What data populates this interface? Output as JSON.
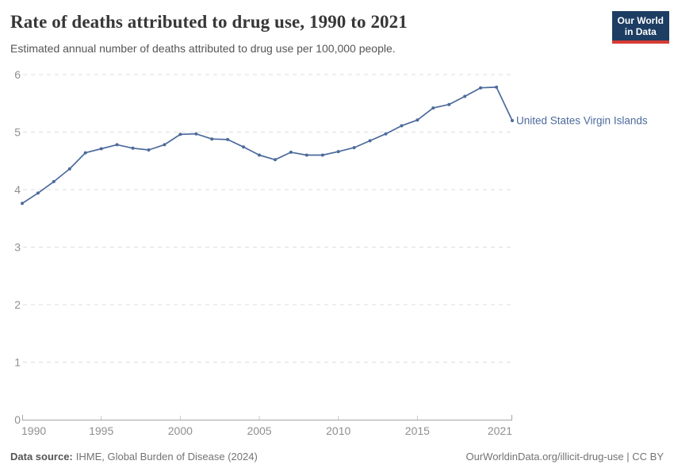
{
  "header": {
    "title": "Rate of deaths attributed to drug use, 1990 to 2021",
    "subtitle": "Estimated annual number of deaths attributed to drug use per 100,000 people.",
    "logo": {
      "line1": "Our World",
      "line2": "in Data"
    }
  },
  "chart_data": {
    "type": "line",
    "title": "Rate of deaths attributed to drug use, 1990 to 2021",
    "entity_label": "United States Virgin Islands",
    "x": [
      1990,
      1991,
      1992,
      1993,
      1994,
      1995,
      1996,
      1997,
      1998,
      1999,
      2000,
      2001,
      2002,
      2003,
      2004,
      2005,
      2006,
      2007,
      2008,
      2009,
      2010,
      2011,
      2012,
      2013,
      2014,
      2015,
      2016,
      2017,
      2018,
      2019,
      2020,
      2021
    ],
    "series": [
      {
        "name": "United States Virgin Islands",
        "color": "#4C6A9C",
        "values": [
          3.76,
          3.94,
          4.14,
          4.36,
          4.64,
          4.71,
          4.78,
          4.72,
          4.69,
          4.78,
          4.96,
          4.97,
          4.88,
          4.87,
          4.74,
          4.6,
          4.52,
          4.65,
          4.6,
          4.6,
          4.66,
          4.73,
          4.85,
          4.97,
          5.11,
          5.21,
          5.42,
          5.48,
          5.62,
          5.77,
          5.78,
          5.2
        ]
      }
    ],
    "xlabel": "",
    "ylabel": "",
    "ylim": [
      0,
      6
    ],
    "yticks": [
      0,
      1,
      2,
      3,
      4,
      5,
      6
    ],
    "xticks": [
      1990,
      1995,
      2000,
      2005,
      2010,
      2015,
      2021
    ],
    "grid": "horizontal-dashed",
    "legend_position": "line-end-label"
  },
  "colors": {
    "line": "#4C6A9C",
    "grid": "#dcdcdc",
    "axis": "#a6a6a6",
    "interior_tick": "#c9c9c9",
    "tick_label": "#8f8f8f",
    "logo_bg": "#1d3d63",
    "logo_accent": "#d73c34"
  },
  "footer": {
    "source_label": "Data source:",
    "source_value": "IHME, Global Burden of Disease (2024)",
    "link": "OurWorldinData.org/illicit-drug-use | CC BY"
  }
}
